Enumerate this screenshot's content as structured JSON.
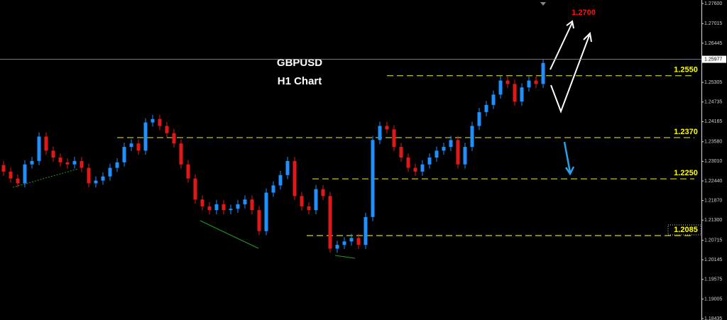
{
  "chart_data": {
    "type": "candlestick",
    "title": "GBPUSD",
    "subtitle": "H1 Chart",
    "open": [
      1.229,
      1.2271,
      1.2251,
      1.2237,
      1.2292,
      1.2302,
      1.2373,
      1.2332,
      1.2312,
      1.2298,
      1.2292,
      1.2302,
      1.2282,
      1.2237,
      1.2245,
      1.2257,
      1.2282,
      1.2298,
      1.2343,
      1.2353,
      1.2332,
      1.2414,
      1.2424,
      1.2404,
      1.2383,
      1.2353,
      1.2292,
      1.2251,
      1.219,
      1.217,
      1.2159,
      1.2176,
      1.2159,
      1.2163,
      1.2176,
      1.219,
      1.2159,
      1.2098,
      1.221,
      1.2231,
      1.2261,
      1.2302,
      1.22,
      1.217,
      1.2159,
      1.222,
      1.22,
      1.2047,
      1.2058,
      1.2068,
      1.2078,
      1.2058,
      1.2139,
      1.2363,
      1.2404,
      1.2394,
      1.2343,
      1.2312,
      1.2282,
      1.2271,
      1.2292,
      1.2312,
      1.2332,
      1.2343,
      1.2363,
      1.2292,
      1.2343,
      1.2404,
      1.2444,
      1.2465,
      1.2495,
      1.2536,
      1.2526,
      1.2475,
      1.2516,
      1.2536,
      1.2526
    ],
    "high": [
      1.2302,
      1.2283,
      1.2263,
      1.2304,
      1.2314,
      1.2385,
      1.2385,
      1.2344,
      1.2324,
      1.231,
      1.2314,
      1.2314,
      1.2294,
      1.2257,
      1.2269,
      1.2294,
      1.231,
      1.2355,
      1.2365,
      1.2365,
      1.2426,
      1.2436,
      1.2436,
      1.2416,
      1.2395,
      1.2365,
      1.2304,
      1.2263,
      1.2202,
      1.2182,
      1.2188,
      1.2188,
      1.2175,
      1.2188,
      1.2202,
      1.2202,
      1.2171,
      1.2222,
      1.2243,
      1.2273,
      1.2314,
      1.2314,
      1.2212,
      1.2182,
      1.2232,
      1.2232,
      1.2212,
      1.207,
      1.208,
      1.209,
      1.209,
      1.2151,
      1.2375,
      1.2416,
      1.2416,
      1.2406,
      1.2355,
      1.2324,
      1.2294,
      1.2304,
      1.2324,
      1.2344,
      1.2355,
      1.2375,
      1.2375,
      1.2355,
      1.2416,
      1.2456,
      1.2477,
      1.2507,
      1.2548,
      1.2548,
      1.2538,
      1.2528,
      1.2548,
      1.2548,
      1.2599
    ],
    "low": [
      1.2259,
      1.2239,
      1.2225,
      1.2225,
      1.228,
      1.229,
      1.232,
      1.23,
      1.2286,
      1.228,
      1.228,
      1.227,
      1.2225,
      1.2225,
      1.2233,
      1.2245,
      1.227,
      1.2286,
      1.2331,
      1.232,
      1.232,
      1.2402,
      1.2392,
      1.2371,
      1.2341,
      1.228,
      1.2239,
      1.2178,
      1.2158,
      1.2147,
      1.2147,
      1.2147,
      1.2147,
      1.2151,
      1.2164,
      1.2147,
      1.2086,
      1.2086,
      1.2198,
      1.2219,
      1.2249,
      1.2188,
      1.2158,
      1.2147,
      1.2147,
      1.2188,
      1.2035,
      1.2035,
      1.2046,
      1.2056,
      1.2046,
      1.2046,
      1.2127,
      1.2351,
      1.2382,
      1.2331,
      1.23,
      1.227,
      1.2259,
      1.2259,
      1.228,
      1.23,
      1.232,
      1.2331,
      1.228,
      1.228,
      1.2331,
      1.2392,
      1.2432,
      1.2453,
      1.2483,
      1.2514,
      1.2463,
      1.2463,
      1.2504,
      1.2514,
      1.2514
    ],
    "close": [
      1.2271,
      1.2251,
      1.2237,
      1.2292,
      1.2302,
      1.2373,
      1.2332,
      1.2312,
      1.2298,
      1.2292,
      1.2302,
      1.2282,
      1.2237,
      1.2245,
      1.2257,
      1.2282,
      1.2298,
      1.2343,
      1.2353,
      1.2332,
      1.2414,
      1.2424,
      1.2404,
      1.2383,
      1.2353,
      1.2292,
      1.2251,
      1.219,
      1.217,
      1.2159,
      1.2176,
      1.2159,
      1.2163,
      1.2176,
      1.219,
      1.2159,
      1.2098,
      1.221,
      1.2231,
      1.2261,
      1.2302,
      1.22,
      1.217,
      1.2159,
      1.222,
      1.22,
      1.2047,
      1.2058,
      1.2068,
      1.2078,
      1.2058,
      1.2139,
      1.2363,
      1.2404,
      1.2394,
      1.2343,
      1.2312,
      1.2282,
      1.2271,
      1.2292,
      1.2312,
      1.2332,
      1.2343,
      1.2363,
      1.2292,
      1.2343,
      1.2404,
      1.2444,
      1.2465,
      1.2495,
      1.2536,
      1.2526,
      1.2475,
      1.2516,
      1.2536,
      1.2526,
      1.2587
    ],
    "up_color": "#1e90ff",
    "down_color": "#e01818",
    "ylim": [
      1.18395,
      1.27702
    ],
    "yticks": [
      {
        "value": 1.276,
        "label": "1.27600"
      },
      {
        "value": 1.27015,
        "label": "1.27015"
      },
      {
        "value": 1.26445,
        "label": "1.26445"
      },
      {
        "value": 1.25305,
        "label": "1.25305"
      },
      {
        "value": 1.24735,
        "label": "1.24735"
      },
      {
        "value": 1.24165,
        "label": "1.24165"
      },
      {
        "value": 1.2358,
        "label": "1.23580"
      },
      {
        "value": 1.2301,
        "label": "1.23010"
      },
      {
        "value": 1.2244,
        "label": "1.22440"
      },
      {
        "value": 1.2187,
        "label": "1.21870"
      },
      {
        "value": 1.213,
        "label": "1.21300"
      },
      {
        "value": 1.20715,
        "label": "1.20715"
      },
      {
        "value": 1.20145,
        "label": "1.20145"
      },
      {
        "value": 1.19575,
        "label": "1.19575"
      },
      {
        "value": 1.19005,
        "label": "1.19005"
      },
      {
        "value": 1.18435,
        "label": "1.18435"
      }
    ],
    "current_price": {
      "value": 1.25977,
      "label": "1.25977"
    },
    "levels": [
      {
        "value": 1.255,
        "label": "1.2550"
      },
      {
        "value": 1.237,
        "label": "1.2370"
      },
      {
        "value": 1.225,
        "label": "1.2250"
      },
      {
        "value": 1.2085,
        "label": "1.2085"
      }
    ],
    "target": {
      "value": 1.27,
      "label": "1.2700",
      "color": "#ff1010"
    }
  }
}
